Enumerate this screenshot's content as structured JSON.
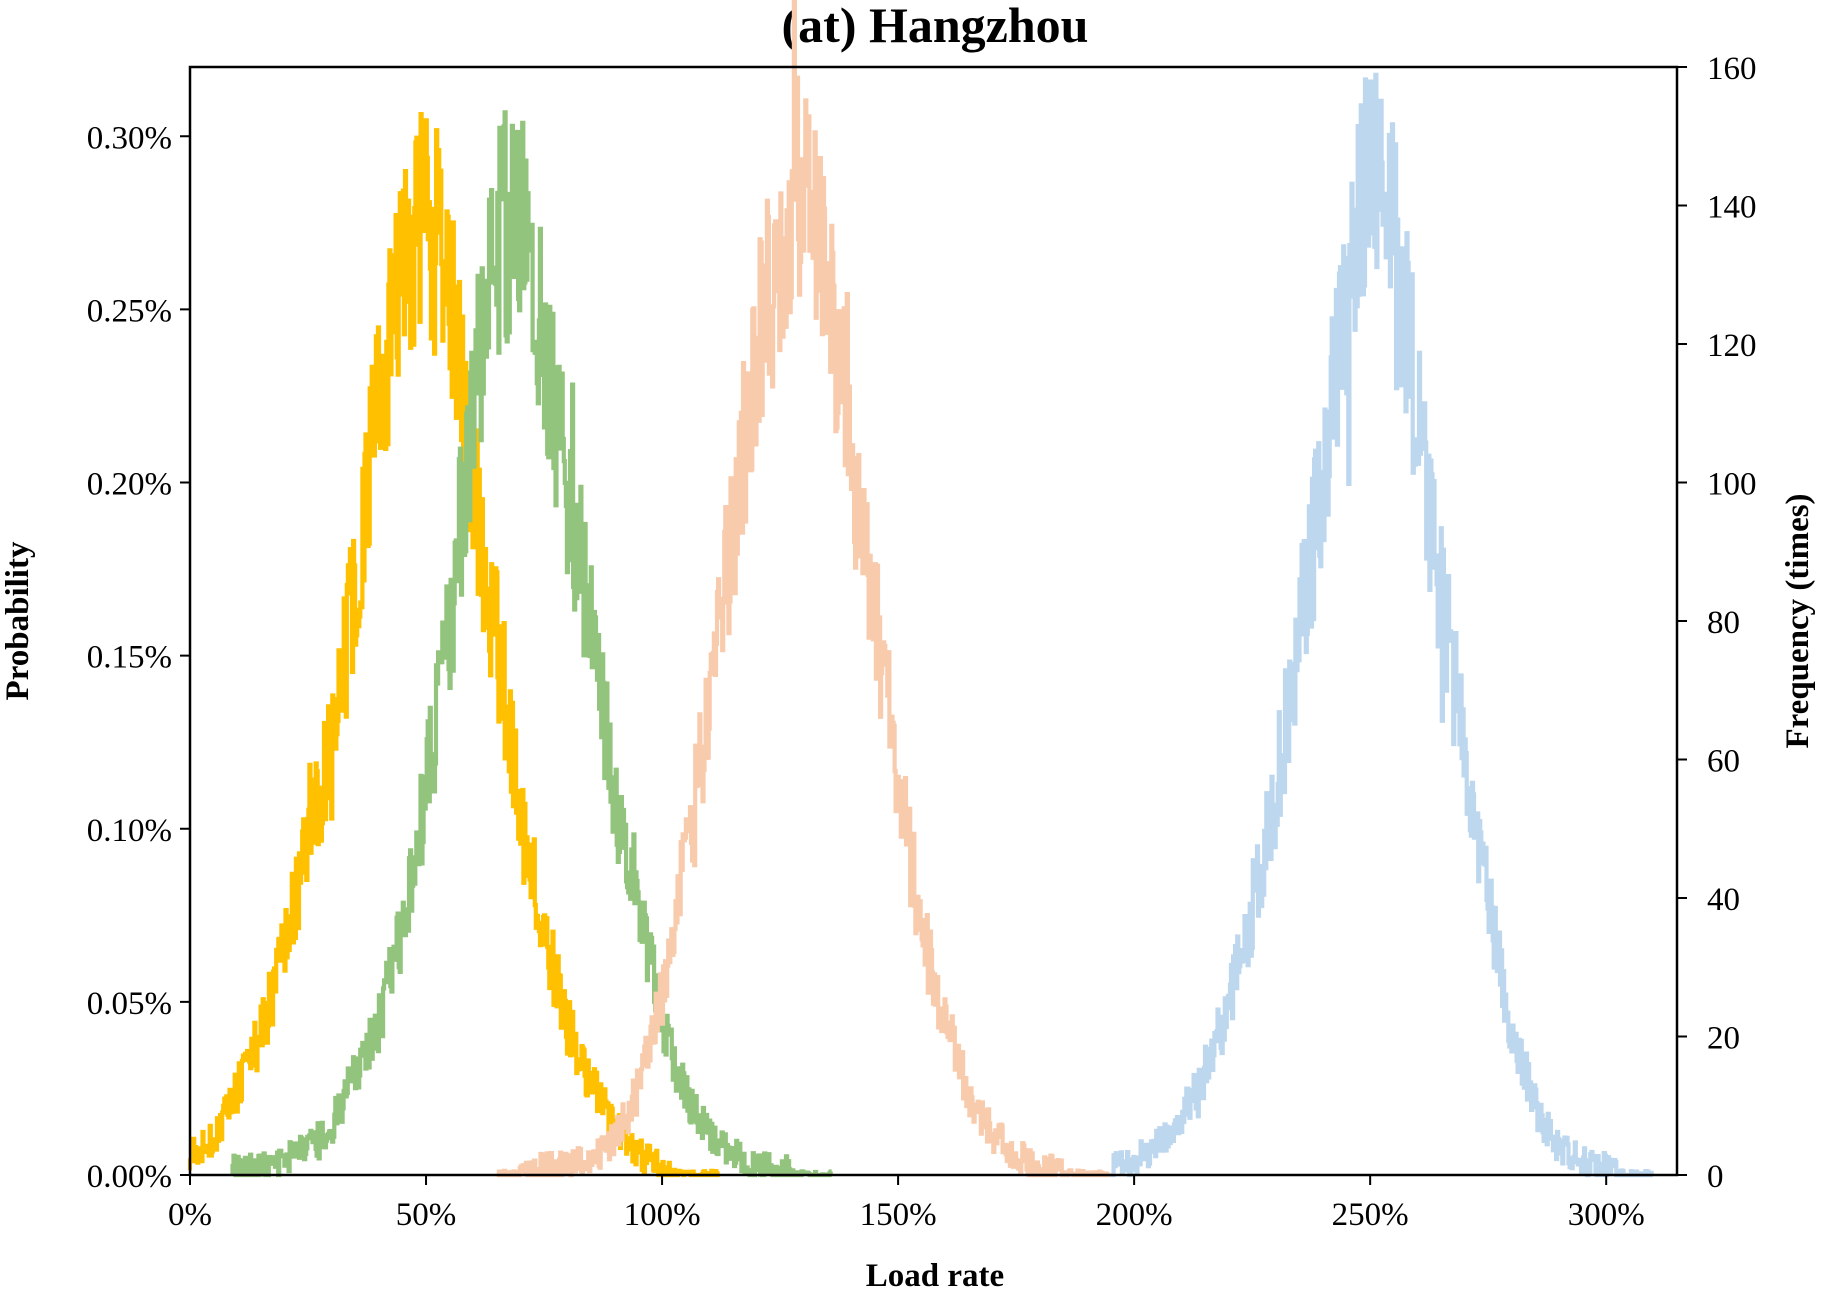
{
  "chart_data": {
    "type": "line",
    "title": "(at) Hangzhou",
    "xlabel": "Load rate",
    "ylabel_left": "Probability",
    "ylabel_right": "Frequency (times)",
    "xlim": [
      0,
      315
    ],
    "ylim_left": [
      0,
      0.32
    ],
    "ylim_right": [
      0,
      160
    ],
    "x_ticks": [
      0,
      50,
      100,
      150,
      200,
      250,
      300
    ],
    "x_tick_labels": [
      "0%",
      "50%",
      "100%",
      "150%",
      "200%",
      "250%",
      "300%"
    ],
    "y_left_ticks": [
      0,
      0.05,
      0.1,
      0.15,
      0.2,
      0.25,
      0.3
    ],
    "y_left_tick_labels": [
      "0.00%",
      "0.05%",
      "0.10%",
      "0.15%",
      "0.20%",
      "0.25%",
      "0.30%"
    ],
    "y_right_ticks": [
      0,
      20,
      40,
      60,
      80,
      100,
      120,
      140,
      160
    ],
    "y_right_tick_labels": [
      "0",
      "20",
      "40",
      "60",
      "80",
      "100",
      "120",
      "140",
      "160"
    ],
    "grid": false,
    "legend": "none",
    "series": [
      {
        "color": "#FFC000",
        "axis": "right",
        "x_range": [
          0,
          112
        ],
        "x": [
          0,
          5,
          10,
          15,
          20,
          25,
          30,
          35,
          40,
          45,
          50,
          55,
          60,
          65,
          70,
          75,
          80,
          85,
          90,
          95,
          100,
          105,
          110
        ],
        "values": [
          3,
          5,
          12,
          20,
          32,
          48,
          62,
          84,
          110,
          130,
          140,
          128,
          100,
          78,
          55,
          36,
          22,
          13,
          7,
          3,
          1,
          0,
          0
        ]
      },
      {
        "color": "#93C47D",
        "axis": "right",
        "x_range": [
          9,
          136
        ],
        "x": [
          10,
          15,
          20,
          25,
          30,
          35,
          40,
          45,
          50,
          55,
          60,
          65,
          70,
          75,
          80,
          85,
          90,
          95,
          100,
          105,
          110,
          115,
          120,
          125,
          130,
          135
        ],
        "values": [
          1,
          1,
          2,
          4,
          7,
          14,
          22,
          36,
          55,
          78,
          112,
          135,
          140,
          122,
          100,
          80,
          55,
          40,
          22,
          12,
          6,
          3,
          1,
          1,
          0,
          0
        ]
      },
      {
        "color": "#F8CBAD",
        "axis": "right",
        "x_range": [
          65,
          195
        ],
        "x": [
          65,
          75,
          85,
          90,
          95,
          100,
          105,
          110,
          115,
          120,
          125,
          130,
          135,
          140,
          145,
          150,
          155,
          160,
          165,
          170,
          175,
          180,
          190,
          195
        ],
        "values": [
          0,
          1,
          2,
          5,
          12,
          25,
          45,
          68,
          92,
          118,
          135,
          145,
          130,
          106,
          82,
          58,
          36,
          22,
          12,
          6,
          3,
          1,
          0,
          0
        ]
      },
      {
        "color": "#BDD7EE",
        "axis": "right",
        "x_range": [
          195,
          310
        ],
        "x": [
          195,
          200,
          205,
          210,
          215,
          220,
          225,
          230,
          235,
          240,
          245,
          250,
          255,
          260,
          265,
          270,
          275,
          280,
          285,
          290,
          295,
          300,
          305,
          310
        ],
        "values": [
          1,
          2,
          4,
          8,
          15,
          24,
          38,
          55,
          78,
          100,
          125,
          145,
          135,
          112,
          85,
          62,
          40,
          22,
          10,
          4,
          2,
          1,
          0,
          0
        ]
      }
    ]
  }
}
